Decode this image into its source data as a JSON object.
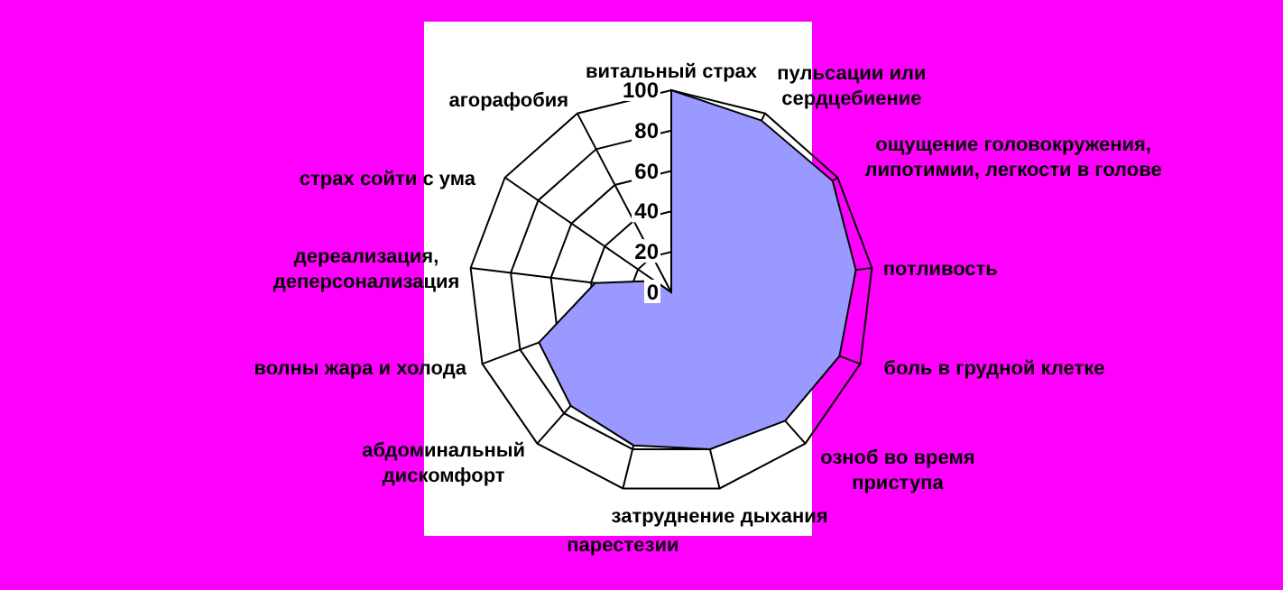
{
  "chart_data": {
    "type": "radar",
    "categories": [
      "витальный страх",
      "пульсации или сердцебиение",
      "ощущение головокружения, липотимии, легкости в голове",
      "потливость",
      "боль в грудной клетке",
      "озноб во время приступа",
      "затруднение дыхания",
      "парестезии",
      "абдоминальный дискомфорт",
      "волны жара и холода",
      "дереализация, деперсонализация",
      "страх сойти с ума",
      "агорафобия"
    ],
    "series": [
      {
        "color": "#9999ff",
        "values": [
          100,
          96,
          97,
          92,
          89,
          85,
          80,
          78,
          75,
          70,
          38,
          10,
          0
        ]
      }
    ],
    "ylim": [
      0,
      100
    ],
    "yticks": [
      0,
      20,
      40,
      60,
      80,
      100
    ],
    "grid": true,
    "legend": false
  }
}
